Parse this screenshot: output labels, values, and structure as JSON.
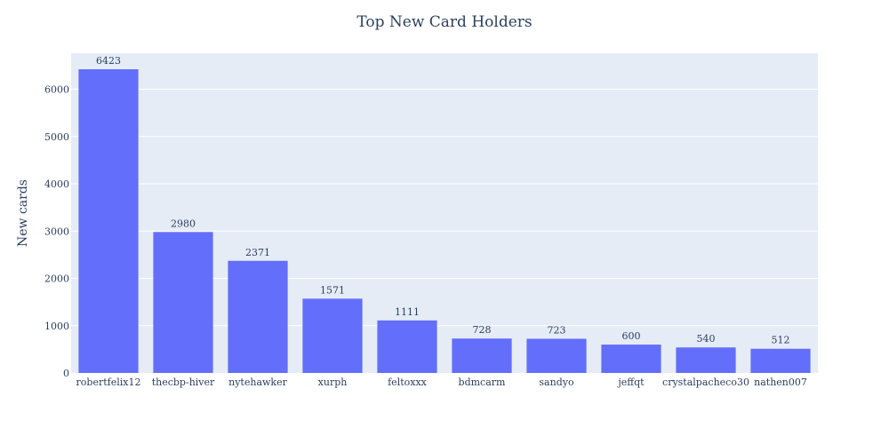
{
  "chart_data": {
    "type": "bar",
    "title": "Top New Card Holders",
    "xlabel": "",
    "ylabel": "New cards",
    "categories": [
      "robertfelix12",
      "thecbp-hiver",
      "nytehawker",
      "xurph",
      "feltoxxx",
      "bdmcarm",
      "sandyo",
      "jeffqt",
      "crystalpacheco30",
      "nathen007"
    ],
    "values": [
      6423,
      2980,
      2371,
      1571,
      1111,
      728,
      723,
      600,
      540,
      512
    ],
    "ylim": [
      0,
      6761
    ],
    "yticks": [
      0,
      1000,
      2000,
      3000,
      4000,
      5000,
      6000
    ],
    "grid": true,
    "bar_color": "#636efa",
    "plot_bg": "#e5ecf6"
  }
}
